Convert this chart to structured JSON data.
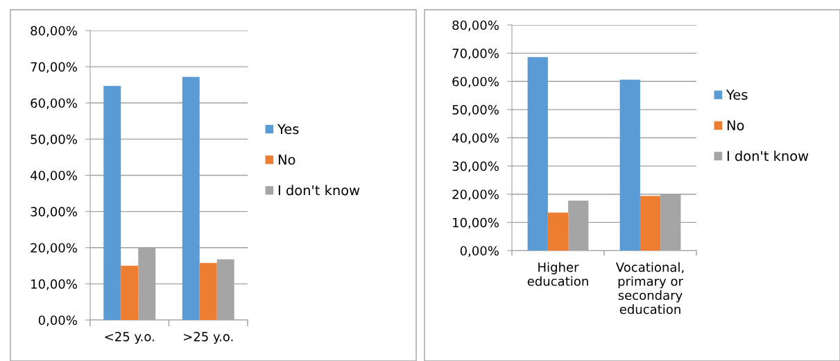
{
  "chart_data": [
    {
      "type": "bar",
      "categories": [
        "<25 y.o.",
        ">25 y.o."
      ],
      "series": [
        {
          "name": "Yes",
          "color": "#5b9bd5",
          "values": [
            64.7,
            67.2
          ]
        },
        {
          "name": "No",
          "color": "#ed7d31",
          "values": [
            15.0,
            15.8
          ]
        },
        {
          "name": "I don't know",
          "color": "#a5a5a5",
          "values": [
            20.0,
            16.8
          ]
        }
      ],
      "ylim": [
        0,
        80
      ],
      "yticks": [
        {
          "value": 0,
          "label": "0,00%"
        },
        {
          "value": 10,
          "label": "10,00%"
        },
        {
          "value": 20,
          "label": "20,00%"
        },
        {
          "value": 30,
          "label": "30,00%"
        },
        {
          "value": 40,
          "label": "40,00%"
        },
        {
          "value": 50,
          "label": "50,00%"
        },
        {
          "value": 60,
          "label": "60,00%"
        },
        {
          "value": 70,
          "label": "70,00%"
        },
        {
          "value": 80,
          "label": "80,00%"
        }
      ],
      "grid": "y",
      "legend": "right"
    },
    {
      "type": "bar",
      "categories": [
        "Higher\neducation",
        "Vocational,\nprimary or\nsecondary\neducation"
      ],
      "series": [
        {
          "name": "Yes",
          "color": "#5b9bd5",
          "values": [
            68.6,
            60.6
          ]
        },
        {
          "name": "No",
          "color": "#ed7d31",
          "values": [
            13.5,
            19.4
          ]
        },
        {
          "name": "I don't know",
          "color": "#a5a5a5",
          "values": [
            17.7,
            20.0
          ]
        }
      ],
      "ylim": [
        0,
        80
      ],
      "yticks": [
        {
          "value": 0,
          "label": "0,00%"
        },
        {
          "value": 10,
          "label": "10,00%"
        },
        {
          "value": 20,
          "label": "20,00%"
        },
        {
          "value": 30,
          "label": "30,00%"
        },
        {
          "value": 40,
          "label": "40,00%"
        },
        {
          "value": 50,
          "label": "50,00%"
        },
        {
          "value": 60,
          "label": "60,00%"
        },
        {
          "value": 70,
          "label": "70,00%"
        },
        {
          "value": 80,
          "label": "80,00%"
        }
      ],
      "grid": "y",
      "legend": "right"
    }
  ]
}
